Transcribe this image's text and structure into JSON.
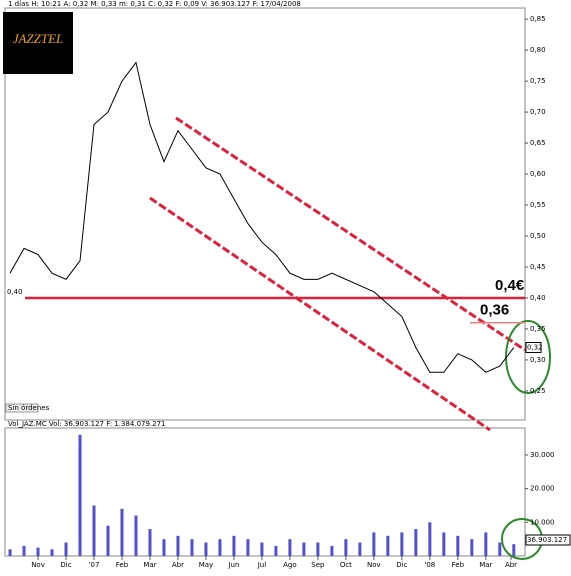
{
  "chart_data": [
    {
      "type": "line",
      "header": "1 días H: 10:21 A: 0,32 M: 0,33 m: 0,31 C: 0,32 F: 0,09 V: 36.903.127 F: 17/04/2008",
      "logo": "JAZZTEL",
      "note": "Sin órdenes",
      "left_marker": "0,40",
      "last_label": "0,32",
      "x": [
        0,
        0.5,
        1,
        1.5,
        2,
        2.5,
        3,
        3.5,
        4,
        4.5,
        5,
        5.5,
        6,
        6.5,
        7,
        7.5,
        8,
        8.5,
        9,
        9.5,
        10,
        10.5,
        11,
        11.5,
        12,
        12.5,
        13,
        13.5,
        14,
        14.5,
        15,
        15.5,
        16,
        16.5,
        17,
        17.5,
        18
      ],
      "series": [
        {
          "name": "JAZ.MC",
          "color": "#000000",
          "values": [
            0.44,
            0.48,
            0.47,
            0.44,
            0.43,
            0.46,
            0.68,
            0.7,
            0.75,
            0.78,
            0.68,
            0.62,
            0.67,
            0.64,
            0.61,
            0.6,
            0.56,
            0.52,
            0.49,
            0.47,
            0.44,
            0.43,
            0.43,
            0.44,
            0.43,
            0.42,
            0.41,
            0.39,
            0.37,
            0.32,
            0.28,
            0.28,
            0.31,
            0.3,
            0.28,
            0.29,
            0.32
          ]
        }
      ],
      "levels": [
        {
          "value": 0.4,
          "label": "0,4€",
          "color": "#e0203a"
        },
        {
          "value": 0.36,
          "label": "0,36",
          "color": "#f08080"
        }
      ],
      "xlim": [
        -0.18,
        18.4
      ],
      "ylim": [
        0.203,
        0.868
      ],
      "xticks": [
        {
          "value": 1,
          "label": "Nov"
        },
        {
          "value": 2,
          "label": "Dic"
        },
        {
          "value": 3,
          "label": "'07"
        },
        {
          "value": 4,
          "label": "Feb"
        },
        {
          "value": 5,
          "label": "Mar"
        },
        {
          "value": 6,
          "label": "Abr"
        },
        {
          "value": 7,
          "label": "May"
        },
        {
          "value": 8,
          "label": "Jun"
        },
        {
          "value": 9,
          "label": "Jul"
        },
        {
          "value": 10,
          "label": "Ago"
        },
        {
          "value": 11,
          "label": "Sep"
        },
        {
          "value": 12,
          "label": "Oct"
        },
        {
          "value": 13,
          "label": "Nov"
        },
        {
          "value": 14,
          "label": "Dic"
        },
        {
          "value": 15,
          "label": "'08"
        },
        {
          "value": 16,
          "label": "Feb"
        },
        {
          "value": 17,
          "label": "Mar"
        },
        {
          "value": 17.9,
          "label": "Abr"
        }
      ],
      "yticks": [
        {
          "value": 0.25,
          "label": "0,25"
        },
        {
          "value": 0.3,
          "label": "0,30"
        },
        {
          "value": 0.35,
          "label": "0,35"
        },
        {
          "value": 0.4,
          "label": "0,40"
        },
        {
          "value": 0.45,
          "label": "0,45"
        },
        {
          "value": 0.5,
          "label": "0,50"
        },
        {
          "value": 0.55,
          "label": "0,55"
        },
        {
          "value": 0.6,
          "label": "0,60"
        },
        {
          "value": 0.65,
          "label": "0,65"
        },
        {
          "value": 0.7,
          "label": "0,70"
        },
        {
          "value": 0.75,
          "label": "0,75"
        },
        {
          "value": 0.8,
          "label": "0,80"
        },
        {
          "value": 0.85,
          "label": "0,85"
        }
      ]
    },
    {
      "type": "bar",
      "header": "Vol_JAZ.MC Vol: 36.903.127 F: 1.384.079.271",
      "last_label": "36.903.127",
      "color": "#5050d0",
      "values": [
        2000,
        3000,
        2500,
        2000,
        4000,
        36000,
        15000,
        9000,
        14000,
        12000,
        8000,
        5000,
        6000,
        5000,
        4000,
        5000,
        6000,
        5000,
        4000,
        3000,
        5000,
        4000,
        4000,
        3000,
        5000,
        4000,
        7000,
        6000,
        7000,
        8000,
        10000,
        7000,
        6000,
        5000,
        7000,
        4000,
        3500
      ],
      "ylim": [
        0,
        38000
      ],
      "yticks": [
        {
          "value": 10000,
          "label": "10.000"
        },
        {
          "value": 20000,
          "label": "20.000"
        },
        {
          "value": 30000,
          "label": "30.000"
        }
      ]
    }
  ]
}
